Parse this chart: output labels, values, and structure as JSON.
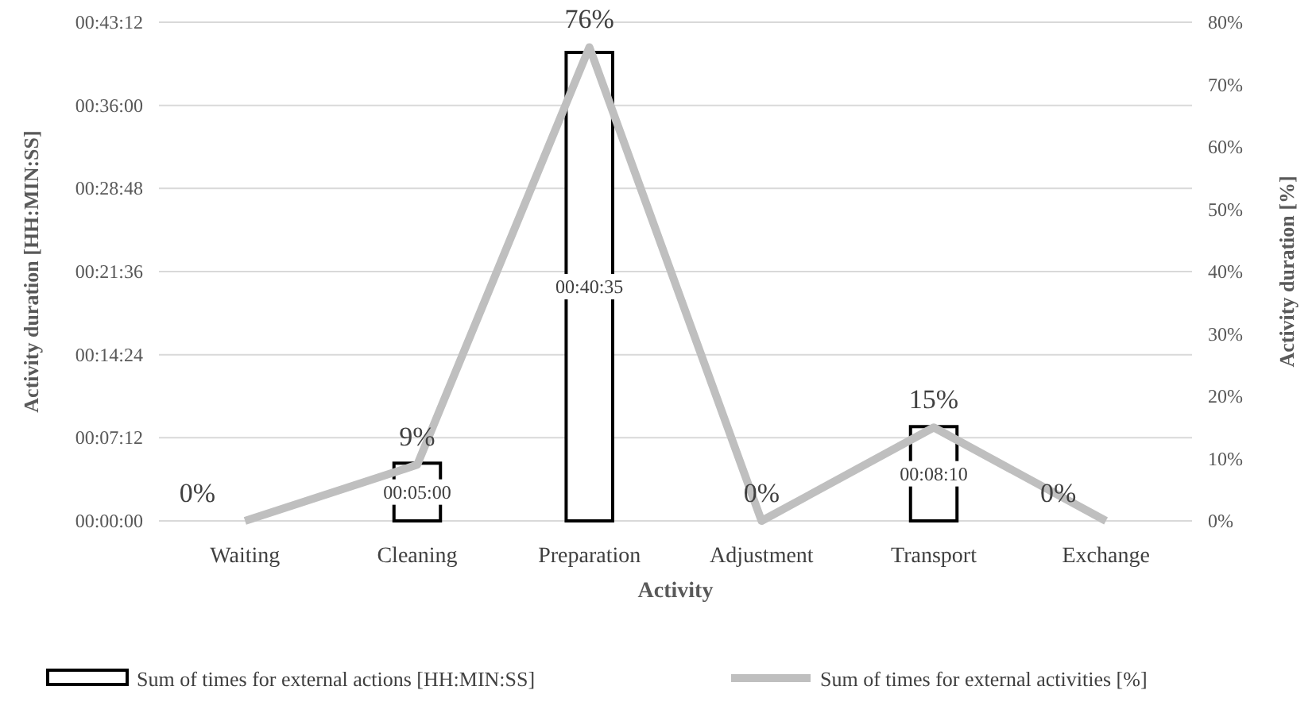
{
  "chart_data": {
    "type": "bar",
    "xlabel": "Activity",
    "ylabel": "Activity duration [HH:MIN:SS]",
    "y2label": "Activity duration [%]",
    "categories": [
      "Waiting",
      "Cleaning",
      "Preparation",
      "Adjustment",
      "Transport",
      "Exchange"
    ],
    "series": [
      {
        "name": "Sum of times for external actions [HH:MIN:SS]",
        "color": "#ffffff",
        "values": [
          0,
          300,
          2435,
          0,
          490,
          0
        ],
        "value_labels": [
          null,
          "00:05:00",
          "00:40:35",
          null,
          "00:08:10",
          null
        ]
      },
      {
        "name": "Sum of times for external activities [%]",
        "type": "line",
        "axis": "y2",
        "color": "#bfbfbf",
        "values": [
          0,
          9,
          76,
          0,
          15,
          0
        ],
        "value_labels": [
          "0%",
          "9%",
          "76%",
          "0%",
          "15%",
          "0%"
        ]
      }
    ],
    "ylim": [
      0,
      2592
    ],
    "yticks": [
      {
        "value": 0,
        "label": "00:00:00"
      },
      {
        "value": 432,
        "label": "00:07:12"
      },
      {
        "value": 864,
        "label": "00:14:24"
      },
      {
        "value": 1296,
        "label": "00:21:36"
      },
      {
        "value": 1728,
        "label": "00:28:48"
      },
      {
        "value": 2160,
        "label": "00:36:00"
      },
      {
        "value": 2592,
        "label": "00:43:12"
      }
    ],
    "y2lim": [
      0,
      80
    ],
    "y2ticks": [
      {
        "value": 0,
        "label": "0%"
      },
      {
        "value": 10,
        "label": "10%"
      },
      {
        "value": 20,
        "label": "20%"
      },
      {
        "value": 30,
        "label": "30%"
      },
      {
        "value": 40,
        "label": "40%"
      },
      {
        "value": 50,
        "label": "50%"
      },
      {
        "value": 60,
        "label": "60%"
      },
      {
        "value": 70,
        "label": "70%"
      },
      {
        "value": 80,
        "label": "80%"
      }
    ],
    "grid": "y",
    "legend": "bottom",
    "marker": "none"
  }
}
